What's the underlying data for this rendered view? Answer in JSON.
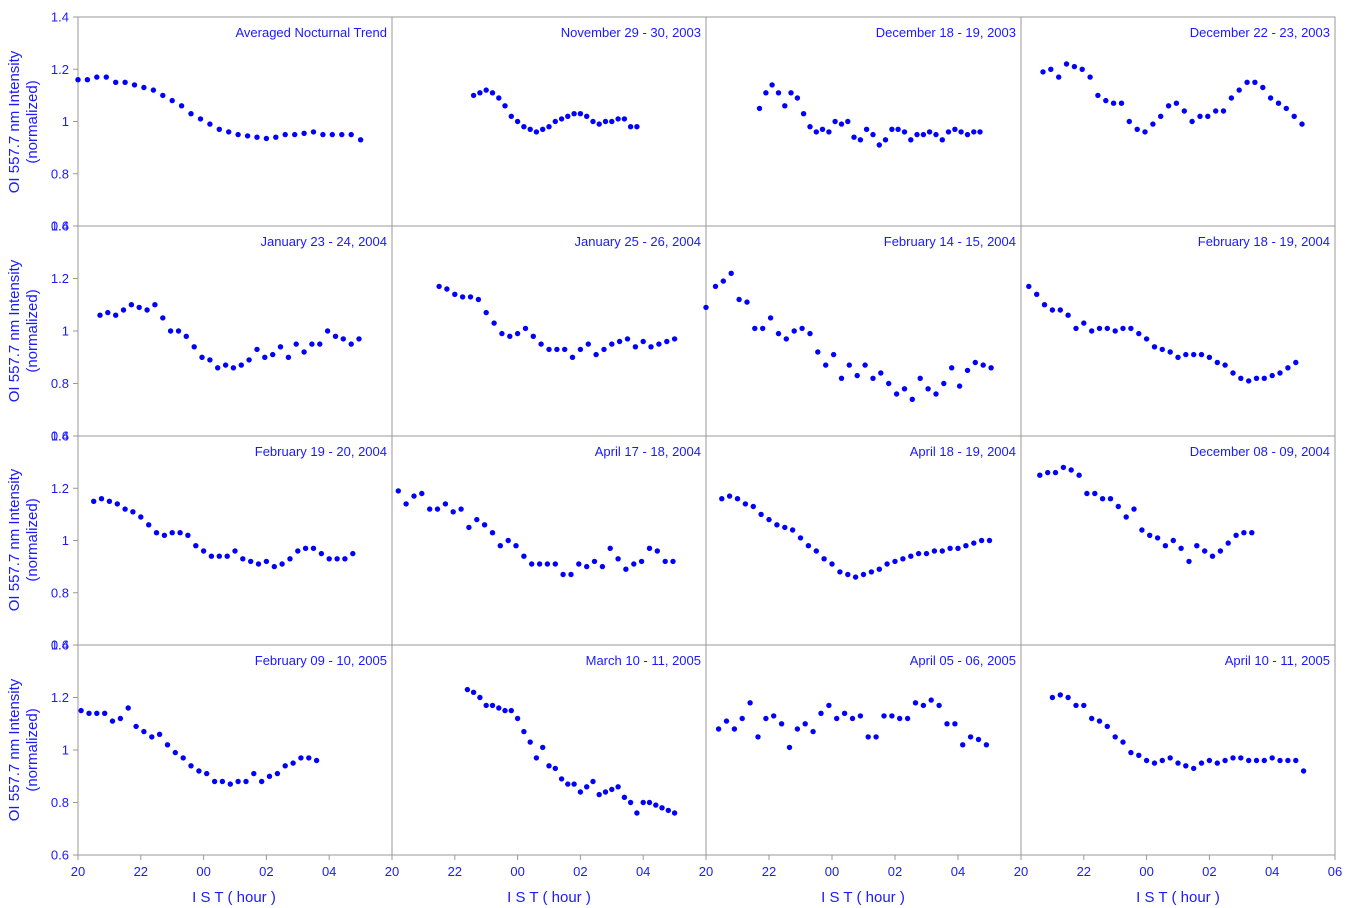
{
  "figure": {
    "accent_color": "#1a1aff",
    "frame_color": "#999999",
    "marker_color": "#0000ff",
    "ylabel_line1": "OI 557.7 nm Intensity",
    "ylabel_line2": "(normalized)",
    "xlabel": "I S T  ( hour )"
  },
  "chart_data": {
    "type": "scatter",
    "layout": "4x4 grid of panels",
    "xlabel": "I S T  ( hour )",
    "ylabel": "OI 557.7 nm Intensity (normalized)",
    "ylim": [
      0.6,
      1.4
    ],
    "yticks": [
      "1.4",
      "1.2",
      "1",
      "0.8",
      "0.6"
    ],
    "xlim_hours_after_20": [
      0,
      10
    ],
    "xtick_labels_per_column": [
      [
        "20",
        "22",
        "00",
        "02",
        "04"
      ],
      [
        "20",
        "22",
        "00",
        "02",
        "04"
      ],
      [
        "20",
        "22",
        "00",
        "02",
        "04"
      ],
      [
        "20",
        "22",
        "00",
        "02",
        "04",
        "06"
      ]
    ],
    "grid": false,
    "x_values_in_hours": "hour of night counted from 20 IST (e.g. 4 = 00 IST, 8 = 04 IST)",
    "panels": [
      {
        "title": "Averaged Nocturnal Trend",
        "x": [
          0.0,
          0.3,
          0.6,
          0.9,
          1.2,
          1.5,
          1.8,
          2.1,
          2.4,
          2.7,
          3.0,
          3.3,
          3.6,
          3.9,
          4.2,
          4.5,
          4.8,
          5.1,
          5.4,
          5.7,
          6.0,
          6.3,
          6.6,
          6.9,
          7.2,
          7.5,
          7.8,
          8.1,
          8.4,
          8.7,
          9.0
        ],
        "y": [
          1.16,
          1.16,
          1.17,
          1.17,
          1.15,
          1.15,
          1.14,
          1.13,
          1.12,
          1.1,
          1.08,
          1.06,
          1.03,
          1.01,
          0.99,
          0.97,
          0.96,
          0.95,
          0.945,
          0.94,
          0.935,
          0.94,
          0.95,
          0.95,
          0.955,
          0.96,
          0.95,
          0.95,
          0.95,
          0.95,
          0.93
        ]
      },
      {
        "title": "November 29 - 30, 2003",
        "x": [
          2.6,
          2.8,
          3.0,
          3.2,
          3.4,
          3.6,
          3.8,
          4.0,
          4.2,
          4.4,
          4.6,
          4.8,
          5.0,
          5.2,
          5.4,
          5.6,
          5.8,
          6.0,
          6.2,
          6.4,
          6.6,
          6.8,
          7.0,
          7.2,
          7.4,
          7.6,
          7.8
        ],
        "y": [
          1.1,
          1.11,
          1.12,
          1.11,
          1.09,
          1.06,
          1.02,
          1.0,
          0.98,
          0.97,
          0.96,
          0.97,
          0.98,
          1.0,
          1.01,
          1.02,
          1.03,
          1.03,
          1.02,
          1.0,
          0.99,
          1.0,
          1.0,
          1.01,
          1.01,
          0.98,
          0.98
        ]
      },
      {
        "title": "December 18 - 19, 2003",
        "x": [
          1.7,
          1.9,
          2.1,
          2.3,
          2.5,
          2.7,
          2.9,
          3.1,
          3.3,
          3.5,
          3.7,
          3.9,
          4.1,
          4.3,
          4.5,
          4.7,
          4.9,
          5.1,
          5.3,
          5.5,
          5.7,
          5.9,
          6.1,
          6.3,
          6.5,
          6.7,
          6.9,
          7.1,
          7.3,
          7.5,
          7.7,
          7.9,
          8.1,
          8.3,
          8.5,
          8.7
        ],
        "y": [
          1.05,
          1.11,
          1.14,
          1.11,
          1.06,
          1.11,
          1.09,
          1.03,
          0.98,
          0.96,
          0.97,
          0.96,
          1.0,
          0.99,
          1.0,
          0.94,
          0.93,
          0.97,
          0.95,
          0.91,
          0.93,
          0.97,
          0.97,
          0.96,
          0.93,
          0.95,
          0.95,
          0.96,
          0.95,
          0.93,
          0.96,
          0.97,
          0.96,
          0.95,
          0.96,
          0.96
        ]
      },
      {
        "title": "December 22 - 23, 2003",
        "x": [
          0.7,
          0.95,
          1.2,
          1.45,
          1.7,
          1.95,
          2.2,
          2.45,
          2.7,
          2.95,
          3.2,
          3.45,
          3.7,
          3.95,
          4.2,
          4.45,
          4.7,
          4.95,
          5.2,
          5.45,
          5.7,
          5.95,
          6.2,
          6.45,
          6.7,
          6.95,
          7.2,
          7.45,
          7.7,
          7.95,
          8.2,
          8.45,
          8.7,
          8.95
        ],
        "y": [
          1.19,
          1.2,
          1.17,
          1.22,
          1.21,
          1.2,
          1.17,
          1.1,
          1.08,
          1.07,
          1.07,
          1.0,
          0.97,
          0.96,
          0.99,
          1.02,
          1.06,
          1.07,
          1.04,
          1.0,
          1.02,
          1.02,
          1.04,
          1.04,
          1.09,
          1.12,
          1.15,
          1.15,
          1.13,
          1.09,
          1.07,
          1.05,
          1.02,
          0.99
        ]
      },
      {
        "title": "January 23 - 24, 2004",
        "x": [
          0.7,
          0.95,
          1.2,
          1.45,
          1.7,
          1.95,
          2.2,
          2.45,
          2.7,
          2.95,
          3.2,
          3.45,
          3.7,
          3.95,
          4.2,
          4.45,
          4.7,
          4.95,
          5.2,
          5.45,
          5.7,
          5.95,
          6.2,
          6.45,
          6.7,
          6.95,
          7.2,
          7.45,
          7.7,
          7.95,
          8.2,
          8.45,
          8.7,
          8.95
        ],
        "y": [
          1.06,
          1.07,
          1.06,
          1.08,
          1.1,
          1.09,
          1.08,
          1.1,
          1.05,
          1.0,
          1.0,
          0.98,
          0.94,
          0.9,
          0.89,
          0.86,
          0.87,
          0.86,
          0.87,
          0.89,
          0.93,
          0.9,
          0.91,
          0.94,
          0.9,
          0.95,
          0.92,
          0.95,
          0.95,
          1.0,
          0.98,
          0.97,
          0.95,
          0.97
        ]
      },
      {
        "title": "January 25 - 26, 2004",
        "x": [
          1.5,
          1.75,
          2.0,
          2.25,
          2.5,
          2.75,
          3.0,
          3.25,
          3.5,
          3.75,
          4.0,
          4.25,
          4.5,
          4.75,
          5.0,
          5.25,
          5.5,
          5.75,
          6.0,
          6.25,
          6.5,
          6.75,
          7.0,
          7.25,
          7.5,
          7.75,
          8.0,
          8.25,
          8.5,
          8.75,
          9.0
        ],
        "y": [
          1.17,
          1.16,
          1.14,
          1.13,
          1.13,
          1.12,
          1.07,
          1.03,
          0.99,
          0.98,
          0.99,
          1.01,
          0.98,
          0.95,
          0.93,
          0.93,
          0.93,
          0.9,
          0.93,
          0.95,
          0.91,
          0.93,
          0.95,
          0.96,
          0.97,
          0.94,
          0.96,
          0.94,
          0.95,
          0.96,
          0.97
        ]
      },
      {
        "title": "February 14 - 15, 2004",
        "x": [
          0.0,
          0.3,
          0.55,
          0.8,
          1.05,
          1.3,
          1.55,
          1.8,
          2.05,
          2.3,
          2.55,
          2.8,
          3.05,
          3.3,
          3.55,
          3.8,
          4.05,
          4.3,
          4.55,
          4.8,
          5.05,
          5.3,
          5.55,
          5.8,
          6.05,
          6.3,
          6.55,
          6.8,
          7.05,
          7.3,
          7.55,
          7.8,
          8.05,
          8.3,
          8.55,
          8.8,
          9.05
        ],
        "y": [
          1.09,
          1.17,
          1.19,
          1.22,
          1.12,
          1.11,
          1.01,
          1.01,
          1.05,
          0.99,
          0.97,
          1.0,
          1.01,
          0.99,
          0.92,
          0.87,
          0.91,
          0.82,
          0.87,
          0.83,
          0.87,
          0.82,
          0.84,
          0.8,
          0.76,
          0.78,
          0.74,
          0.82,
          0.78,
          0.76,
          0.8,
          0.86,
          0.79,
          0.85,
          0.88,
          0.87,
          0.86
        ]
      },
      {
        "title": "February 18 - 19, 2004",
        "x": [
          0.25,
          0.5,
          0.75,
          1.0,
          1.25,
          1.5,
          1.75,
          2.0,
          2.25,
          2.5,
          2.75,
          3.0,
          3.25,
          3.5,
          3.75,
          4.0,
          4.25,
          4.5,
          4.75,
          5.0,
          5.25,
          5.5,
          5.75,
          6.0,
          6.25,
          6.5,
          6.75,
          7.0,
          7.25,
          7.5,
          7.75,
          8.0,
          8.25,
          8.5,
          8.75
        ],
        "y": [
          1.17,
          1.14,
          1.1,
          1.08,
          1.08,
          1.06,
          1.01,
          1.03,
          1.0,
          1.01,
          1.01,
          1.0,
          1.01,
          1.01,
          0.99,
          0.97,
          0.94,
          0.93,
          0.92,
          0.9,
          0.91,
          0.91,
          0.91,
          0.9,
          0.88,
          0.87,
          0.84,
          0.82,
          0.81,
          0.82,
          0.82,
          0.83,
          0.84,
          0.86,
          0.88
        ]
      },
      {
        "title": "February 19 - 20, 2004",
        "x": [
          0.5,
          0.75,
          1.0,
          1.25,
          1.5,
          1.75,
          2.0,
          2.25,
          2.5,
          2.75,
          3.0,
          3.25,
          3.5,
          3.75,
          4.0,
          4.25,
          4.5,
          4.75,
          5.0,
          5.25,
          5.5,
          5.75,
          6.0,
          6.25,
          6.5,
          6.75,
          7.0,
          7.25,
          7.5,
          7.75,
          8.0,
          8.25,
          8.5,
          8.75
        ],
        "y": [
          1.15,
          1.16,
          1.15,
          1.14,
          1.12,
          1.11,
          1.09,
          1.06,
          1.03,
          1.02,
          1.03,
          1.03,
          1.02,
          0.98,
          0.96,
          0.94,
          0.94,
          0.94,
          0.96,
          0.93,
          0.92,
          0.91,
          0.92,
          0.9,
          0.91,
          0.93,
          0.96,
          0.97,
          0.97,
          0.95,
          0.93,
          0.93,
          0.93,
          0.95
        ]
      },
      {
        "title": "April 17 - 18, 2004",
        "x": [
          0.2,
          0.45,
          0.7,
          0.95,
          1.2,
          1.45,
          1.7,
          1.95,
          2.2,
          2.45,
          2.7,
          2.95,
          3.2,
          3.45,
          3.7,
          3.95,
          4.2,
          4.45,
          4.7,
          4.95,
          5.2,
          5.45,
          5.7,
          5.95,
          6.2,
          6.45,
          6.7,
          6.95,
          7.2,
          7.45,
          7.7,
          7.95,
          8.2,
          8.45,
          8.7,
          8.95
        ],
        "y": [
          1.19,
          1.14,
          1.17,
          1.18,
          1.12,
          1.12,
          1.14,
          1.11,
          1.12,
          1.05,
          1.08,
          1.06,
          1.03,
          0.98,
          1.0,
          0.98,
          0.94,
          0.91,
          0.91,
          0.91,
          0.91,
          0.87,
          0.87,
          0.91,
          0.9,
          0.92,
          0.9,
          0.97,
          0.93,
          0.89,
          0.91,
          0.92,
          0.97,
          0.96,
          0.92,
          0.92
        ]
      },
      {
        "title": "April 18 - 19, 2004",
        "x": [
          0.5,
          0.75,
          1.0,
          1.25,
          1.5,
          1.75,
          2.0,
          2.25,
          2.5,
          2.75,
          3.0,
          3.25,
          3.5,
          3.75,
          4.0,
          4.25,
          4.5,
          4.75,
          5.0,
          5.25,
          5.5,
          5.75,
          6.0,
          6.25,
          6.5,
          6.75,
          7.0,
          7.25,
          7.5,
          7.75,
          8.0,
          8.25,
          8.5,
          8.75,
          9.0
        ],
        "y": [
          1.16,
          1.17,
          1.16,
          1.14,
          1.13,
          1.1,
          1.08,
          1.06,
          1.05,
          1.04,
          1.01,
          0.98,
          0.96,
          0.93,
          0.91,
          0.88,
          0.87,
          0.86,
          0.87,
          0.88,
          0.89,
          0.91,
          0.92,
          0.93,
          0.94,
          0.95,
          0.95,
          0.96,
          0.96,
          0.97,
          0.97,
          0.98,
          0.99,
          1.0,
          1.0
        ]
      },
      {
        "title": "December 08 - 09, 2004",
        "x": [
          0.6,
          0.85,
          1.1,
          1.35,
          1.6,
          1.85,
          2.1,
          2.35,
          2.6,
          2.85,
          3.1,
          3.35,
          3.6,
          3.85,
          4.1,
          4.35,
          4.6,
          4.85,
          5.1,
          5.35,
          5.6,
          5.85,
          6.1,
          6.35,
          6.6,
          6.85,
          7.1,
          7.35
        ],
        "y": [
          1.25,
          1.26,
          1.26,
          1.28,
          1.27,
          1.25,
          1.18,
          1.18,
          1.16,
          1.16,
          1.13,
          1.09,
          1.12,
          1.04,
          1.02,
          1.01,
          0.98,
          1.0,
          0.97,
          0.92,
          0.98,
          0.96,
          0.94,
          0.96,
          0.99,
          1.02,
          1.03,
          1.03
        ]
      },
      {
        "title": "February 09 - 10, 2005",
        "x": [
          0.1,
          0.35,
          0.6,
          0.85,
          1.1,
          1.35,
          1.6,
          1.85,
          2.1,
          2.35,
          2.6,
          2.85,
          3.1,
          3.35,
          3.6,
          3.85,
          4.1,
          4.35,
          4.6,
          4.85,
          5.1,
          5.35,
          5.6,
          5.85,
          6.1,
          6.35,
          6.6,
          6.85,
          7.1,
          7.35,
          7.6
        ],
        "y": [
          1.15,
          1.14,
          1.14,
          1.14,
          1.11,
          1.12,
          1.16,
          1.09,
          1.07,
          1.05,
          1.06,
          1.02,
          0.99,
          0.97,
          0.94,
          0.92,
          0.91,
          0.88,
          0.88,
          0.87,
          0.88,
          0.88,
          0.91,
          0.88,
          0.9,
          0.91,
          0.94,
          0.95,
          0.97,
          0.97,
          0.96
        ]
      },
      {
        "title": "March 10 - 11, 2005",
        "x": [
          2.4,
          2.6,
          2.8,
          3.0,
          3.2,
          3.4,
          3.6,
          3.8,
          4.0,
          4.2,
          4.4,
          4.6,
          4.8,
          5.0,
          5.2,
          5.4,
          5.6,
          5.8,
          6.0,
          6.2,
          6.4,
          6.6,
          6.8,
          7.0,
          7.2,
          7.4,
          7.6,
          7.8,
          8.0,
          8.2,
          8.4,
          8.6,
          8.8,
          9.0
        ],
        "y": [
          1.23,
          1.22,
          1.2,
          1.17,
          1.17,
          1.16,
          1.15,
          1.15,
          1.12,
          1.07,
          1.03,
          0.97,
          1.01,
          0.94,
          0.93,
          0.89,
          0.87,
          0.87,
          0.84,
          0.86,
          0.88,
          0.83,
          0.84,
          0.85,
          0.86,
          0.82,
          0.8,
          0.76,
          0.8,
          0.8,
          0.79,
          0.78,
          0.77,
          0.76
        ]
      },
      {
        "title": "April 05 - 06, 2005",
        "x": [
          0.4,
          0.65,
          0.9,
          1.15,
          1.4,
          1.65,
          1.9,
          2.15,
          2.4,
          2.65,
          2.9,
          3.15,
          3.4,
          3.65,
          3.9,
          4.15,
          4.4,
          4.65,
          4.9,
          5.15,
          5.4,
          5.65,
          5.9,
          6.15,
          6.4,
          6.65,
          6.9,
          7.15,
          7.4,
          7.65,
          7.9,
          8.15,
          8.4,
          8.65,
          8.9
        ],
        "y": [
          1.08,
          1.11,
          1.08,
          1.12,
          1.18,
          1.05,
          1.12,
          1.13,
          1.1,
          1.01,
          1.08,
          1.1,
          1.07,
          1.14,
          1.17,
          1.12,
          1.14,
          1.12,
          1.13,
          1.05,
          1.05,
          1.13,
          1.13,
          1.12,
          1.12,
          1.18,
          1.17,
          1.19,
          1.17,
          1.1,
          1.1,
          1.02,
          1.05,
          1.04,
          1.02
        ]
      },
      {
        "title": "April 10 - 11, 2005",
        "x": [
          1.0,
          1.25,
          1.5,
          1.75,
          2.0,
          2.25,
          2.5,
          2.75,
          3.0,
          3.25,
          3.5,
          3.75,
          4.0,
          4.25,
          4.5,
          4.75,
          5.0,
          5.25,
          5.5,
          5.75,
          6.0,
          6.25,
          6.5,
          6.75,
          7.0,
          7.25,
          7.5,
          7.75,
          8.0,
          8.25,
          8.5,
          8.75,
          9.0
        ],
        "y": [
          1.2,
          1.21,
          1.2,
          1.17,
          1.17,
          1.12,
          1.11,
          1.09,
          1.05,
          1.03,
          0.99,
          0.98,
          0.96,
          0.95,
          0.96,
          0.97,
          0.95,
          0.94,
          0.93,
          0.95,
          0.96,
          0.95,
          0.96,
          0.97,
          0.97,
          0.96,
          0.96,
          0.96,
          0.97,
          0.96,
          0.96,
          0.96,
          0.92
        ]
      }
    ]
  }
}
